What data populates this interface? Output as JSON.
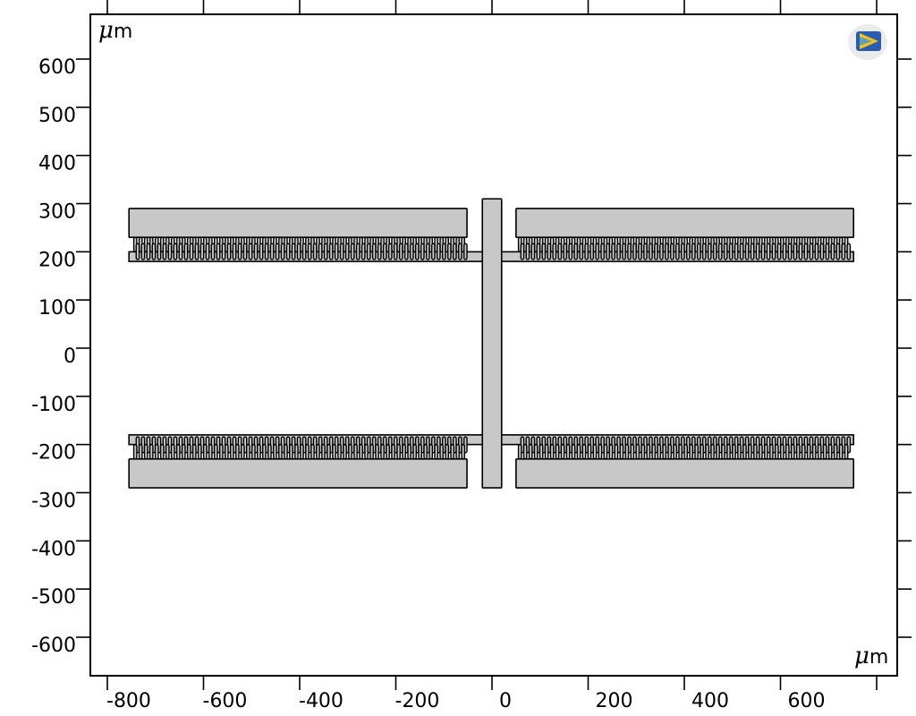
{
  "units": {
    "mu": "μ",
    "m": "m"
  },
  "x_axis": {
    "ticks": [
      -800,
      -600,
      -400,
      -200,
      0,
      200,
      400,
      600,
      800
    ],
    "labels": [
      "-800",
      "-600",
      "-400",
      "-200",
      "0",
      "200",
      "400",
      "600",
      ""
    ]
  },
  "y_axis": {
    "ticks": [
      600,
      500,
      400,
      300,
      200,
      100,
      0,
      -100,
      -200,
      -300,
      -400,
      -500,
      -600
    ],
    "labels": [
      "600",
      "500",
      "400",
      "300",
      "200",
      "100",
      "0",
      "-100",
      "-200",
      "-300",
      "-400",
      "-500",
      "-600"
    ]
  },
  "geometry": {
    "stator_pads": [
      {
        "x0": -755,
        "x1": -52,
        "y0": 230,
        "y1": 290
      },
      {
        "x0": 50,
        "x1": 752,
        "y0": 230,
        "y1": 290
      },
      {
        "x0": -755,
        "x1": -52,
        "y0": -290,
        "y1": -230
      },
      {
        "x0": 50,
        "x1": 752,
        "y0": -290,
        "y1": -230
      }
    ],
    "shuttle": {
      "x0": -20,
      "x1": 20,
      "y0": -290,
      "y1": 310
    },
    "cross_beams": [
      {
        "x0": -755,
        "x1": 752,
        "y0": 180,
        "y1": 200
      },
      {
        "x0": -755,
        "x1": 752,
        "y0": -200,
        "y1": -180
      }
    ],
    "fingers": {
      "left": {
        "x_start": -745,
        "x_end": -52,
        "count": 62
      },
      "right": {
        "x_start": 55,
        "x_end": 745,
        "count": 62
      }
    }
  },
  "logo_icon": "comsol-logo-icon"
}
